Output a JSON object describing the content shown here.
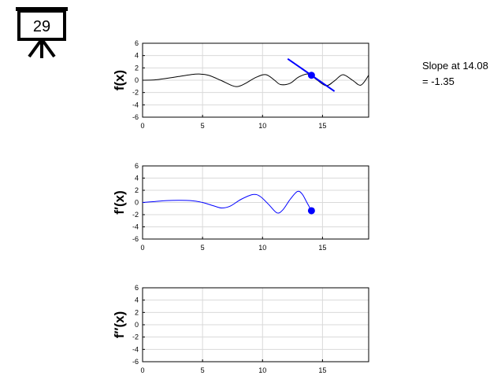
{
  "slide_badge": {
    "number": "29",
    "icon": "presentation-easel-icon"
  },
  "slope_readout": {
    "line1": "Slope at 14.08",
    "line2": "= -1.35"
  },
  "colors": {
    "curve": "#000000",
    "derivative": "#0000ff",
    "grid": "#d9d9d9",
    "axis": "#000000"
  },
  "chart_data": [
    {
      "type": "line",
      "ylabel": "f(x)",
      "xlim": [
        0,
        18.85
      ],
      "ylim": [
        -6,
        6
      ],
      "xticks": [
        "0",
        "5",
        "10",
        "15"
      ],
      "yticks": [
        "6",
        "4",
        "2",
        "0",
        "-2",
        "-4",
        "-6"
      ],
      "grid": true,
      "series": [
        {
          "values": "f(x) sampled over x in [0, 18.85]",
          "x": [
            0,
            1,
            2,
            3,
            4,
            4.7,
            5.5,
            6.5,
            7.5,
            8.0,
            8.5,
            9.5,
            10.3,
            11.0,
            11.5,
            12.3,
            13.0,
            13.8,
            14.5,
            15.3,
            16.0,
            16.7,
            17.5,
            18.2,
            18.85
          ],
          "y": [
            0,
            0.05,
            0.3,
            0.6,
            0.9,
            1.0,
            0.8,
            0.0,
            -0.9,
            -1.0,
            -0.6,
            0.5,
            0.9,
            0.0,
            -0.7,
            -0.5,
            0.5,
            1.0,
            0.1,
            -0.9,
            -0.1,
            0.9,
            0.0,
            -0.8,
            0.8
          ]
        }
      ],
      "marker": {
        "x": 14.08,
        "y": 0.8
      },
      "tangent": {
        "slope": -1.35,
        "x_from": 12.1,
        "x_to": 16.0
      }
    },
    {
      "type": "line",
      "ylabel": "f′(x)",
      "xlim": [
        0,
        18.85
      ],
      "ylim": [
        -6,
        6
      ],
      "xticks": [
        "0",
        "5",
        "10",
        "15"
      ],
      "yticks": [
        "6",
        "4",
        "2",
        "0",
        "-2",
        "-4",
        "-6"
      ],
      "grid": true,
      "series": [
        {
          "values": "f'(x) from 0 to 14.08",
          "x": [
            0,
            1,
            2,
            3,
            4,
            5,
            6,
            6.6,
            7.3,
            8.2,
            9.2,
            9.8,
            10.5,
            11.2,
            11.7,
            12.3,
            12.9,
            13.3,
            13.7,
            14.08
          ],
          "y": [
            0,
            0.15,
            0.3,
            0.35,
            0.3,
            0.0,
            -0.6,
            -0.9,
            -0.6,
            0.5,
            1.3,
            1.0,
            -0.3,
            -1.7,
            -1.2,
            0.5,
            1.8,
            1.4,
            0.0,
            -1.35
          ]
        }
      ],
      "marker": {
        "x": 14.08,
        "y": -1.35
      }
    },
    {
      "type": "line",
      "ylabel": "f″(x)",
      "xlim": [
        0,
        18.85
      ],
      "ylim": [
        -6,
        6
      ],
      "xticks": [
        "0",
        "5",
        "10",
        "15"
      ],
      "yticks": [
        "6",
        "4",
        "2",
        "0",
        "-2",
        "-4",
        "-6"
      ],
      "grid": true,
      "series": []
    }
  ]
}
